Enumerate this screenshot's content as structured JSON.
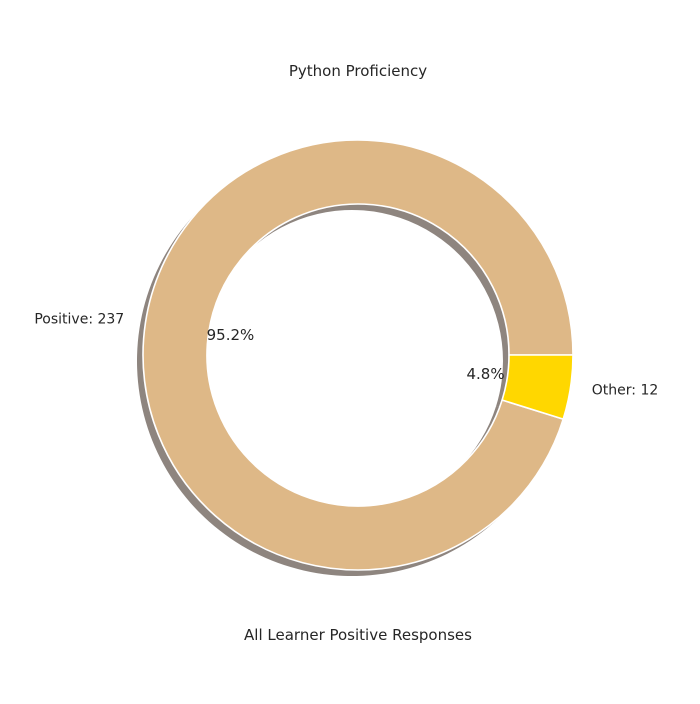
{
  "chart_data": {
    "type": "pie",
    "title": "Python Proficiency",
    "xlabel": "All Learner Positive Responses",
    "donut": true,
    "shadow": true,
    "start_angle_deg": 0,
    "counterclockwise": true,
    "legend": "none",
    "slices": [
      {
        "label": "Positive: 237",
        "value": 237,
        "percent_label": "95.2%",
        "color": "#DEB887"
      },
      {
        "label": "Other: 12",
        "value": 12,
        "percent_label": "4.8%",
        "color": "#FFD700"
      }
    ]
  }
}
